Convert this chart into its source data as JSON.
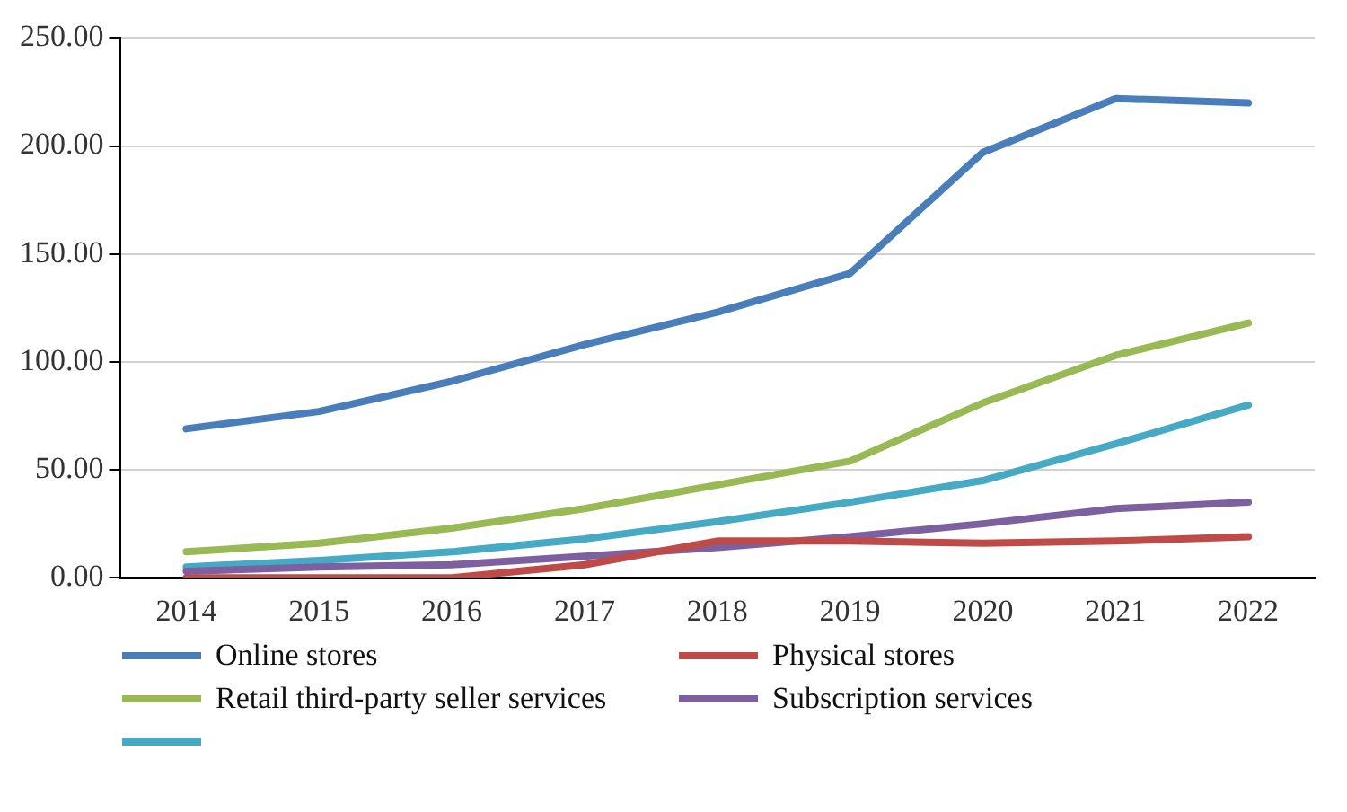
{
  "chart_data": {
    "type": "line",
    "categories": [
      "2014",
      "2015",
      "2016",
      "2017",
      "2018",
      "2019",
      "2020",
      "2021",
      "2022"
    ],
    "series": [
      {
        "name": "Online stores",
        "color": "#4a7ebb",
        "values": [
          69,
          77,
          91,
          108,
          123,
          141,
          197,
          222,
          220
        ]
      },
      {
        "name": "Physical stores",
        "color": "#be4b48",
        "values": [
          0,
          0,
          0,
          6,
          17,
          17,
          16,
          17,
          19
        ]
      },
      {
        "name": "Retail third-party seller services",
        "color": "#98b954",
        "values": [
          12,
          16,
          23,
          32,
          43,
          54,
          81,
          103,
          118
        ]
      },
      {
        "name": "Subscription services",
        "color": "#7d60a0",
        "values": [
          3,
          5,
          6,
          10,
          14,
          19,
          25,
          32,
          35
        ]
      },
      {
        "color": "#46aac5",
        "values": [
          5,
          8,
          12,
          18,
          26,
          35,
          45,
          62,
          80
        ]
      }
    ],
    "ylim": [
      0,
      250
    ],
    "yticks": [
      {
        "value": 0,
        "label": "0.00"
      },
      {
        "value": 50,
        "label": "50.00"
      },
      {
        "value": 100,
        "label": "100.00"
      },
      {
        "value": 150,
        "label": "150.00"
      },
      {
        "value": 200,
        "label": "200.00"
      },
      {
        "value": 250,
        "label": "250.00"
      }
    ],
    "grid": "y",
    "legend": "bottom",
    "marker": "none",
    "line_style": "solid"
  }
}
